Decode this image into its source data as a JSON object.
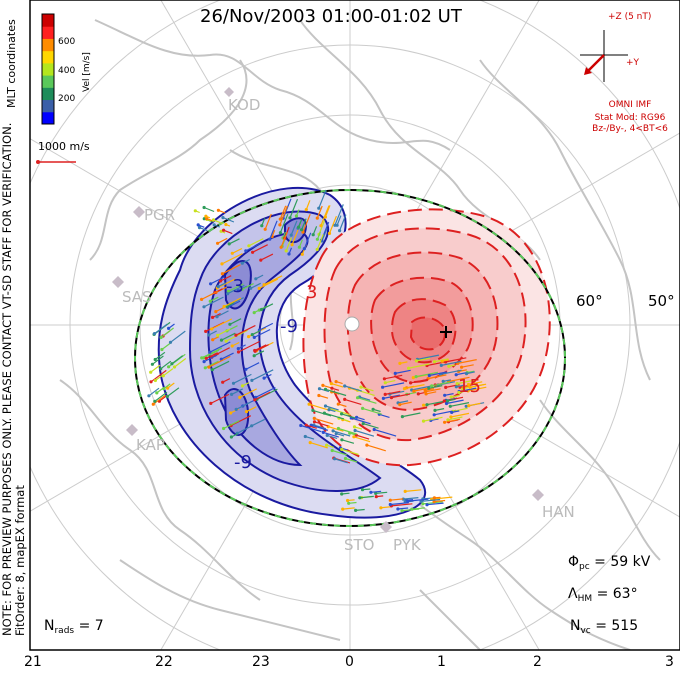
{
  "title": "26/Nov/2003 01:00-01:02 UT",
  "side_note": [
    "NOTE: FOR PREVIEW PURPOSES ONLY. PLEASE CONTACT VT-SD STAFF FOR VERIFICATION.",
    "FitOrder: 8, mapEX format"
  ],
  "coords_label": "MLT coordinates",
  "colorbar": {
    "label": "Vel [m/s]",
    "ticks": [
      "600",
      "400",
      "200"
    ],
    "range": [
      0,
      800
    ],
    "colors": [
      "#0000ff",
      "#3a5fa8",
      "#1e8c5a",
      "#5ac85a",
      "#b4e61e",
      "#ffd700",
      "#ff8c00",
      "#ff2020",
      "#cc0000"
    ]
  },
  "vector_scale": "1000 m/s",
  "imf": {
    "axis_z": "+Z (5 nT)",
    "axis_y": "+Y",
    "source": "OMNI IMF",
    "model": "Stat Mod: RG96",
    "condition": "Bz-/By-, 4<BT<6"
  },
  "stats": {
    "phi_symbol": "Φ",
    "phi_sub": "pc",
    "phi_value": "= 59 kV",
    "lambda_symbol": "Λ",
    "lambda_sub": "HM",
    "lambda_value": "= 63°",
    "nvc_symbol": "N",
    "nvc_sub": "vc",
    "nvc_value": "= 515",
    "nrads_symbol": "N",
    "nrads_sub": "rads",
    "nrads_value": "= 7"
  },
  "mlt_labels": [
    "21",
    "22",
    "23",
    "0",
    "1",
    "2",
    "3"
  ],
  "lat_labels": [
    "60°",
    "50°"
  ],
  "radar_sites": [
    "KOD",
    "PGR",
    "SAS",
    "KAP",
    "HAN",
    "STO",
    "PYK"
  ],
  "contour_labels": [
    "-3",
    "-9",
    "-9",
    "3",
    "15"
  ],
  "chart_data": {
    "type": "polar convection map",
    "coordinates": "MLT",
    "mlt_ticks": [
      21,
      22,
      23,
      0,
      1,
      2,
      3
    ],
    "lat_ticks": [
      60,
      50
    ],
    "potential_cross_polar_cap_kV": 59,
    "heppner_maynard_boundary_lat_deg": 63,
    "n_vectors": 515,
    "n_radars": 7,
    "contour_values_kV": [
      -9,
      -3,
      3,
      15
    ],
    "velocity_range_ms": [
      0,
      800
    ],
    "colors": {
      "positive_cell": "#e83030",
      "negative_cell": "#2a2aa8",
      "grid": "#cccccc",
      "coast": "#c0c0c0",
      "hmb": "#3cb43c"
    }
  }
}
